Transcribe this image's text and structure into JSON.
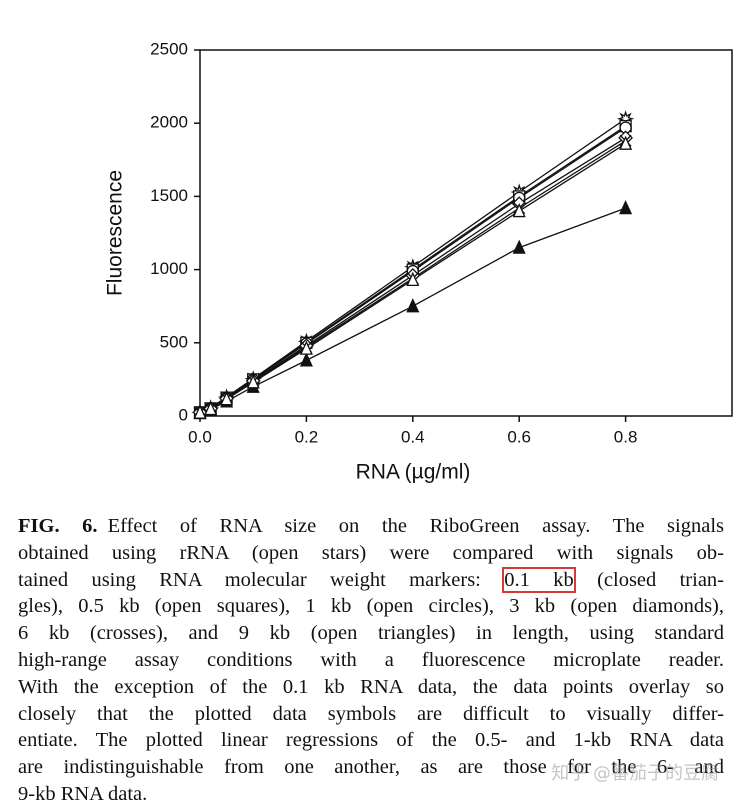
{
  "chart_data": {
    "type": "line",
    "xlabel": "RNA (µg/ml)",
    "ylabel": "Fluorescence",
    "x": [
      0,
      0.02,
      0.05,
      0.1,
      0.2,
      0.4,
      0.6,
      0.8
    ],
    "xlim": [
      0,
      1.0
    ],
    "xticks": [
      {
        "value": 0,
        "label": "0.0"
      },
      0.2,
      0.4,
      0.6,
      0.8
    ],
    "ylim": [
      0,
      2500
    ],
    "yticks": [
      0,
      500,
      1000,
      1500,
      2000,
      2500
    ],
    "series": [
      {
        "marker": "star",
        "color": "#111111",
        "values": [
          25,
          55,
          130,
          255,
          510,
          1020,
          1530,
          2030
        ]
      },
      {
        "marker": "triangle-filled",
        "color": "#111111",
        "values": [
          20,
          45,
          100,
          200,
          380,
          750,
          1150,
          1420
        ]
      },
      {
        "marker": "square",
        "color": "#111111",
        "values": [
          25,
          52,
          125,
          250,
          500,
          1000,
          1500,
          1980
        ]
      },
      {
        "marker": "circle",
        "color": "#111111",
        "values": [
          25,
          52,
          125,
          248,
          495,
          990,
          1490,
          1970
        ]
      },
      {
        "marker": "diamond",
        "color": "#111111",
        "values": [
          25,
          50,
          120,
          240,
          480,
          960,
          1450,
          1900
        ]
      },
      {
        "marker": "cross",
        "color": "#111111",
        "values": [
          24,
          50,
          118,
          235,
          470,
          940,
          1420,
          1880
        ]
      },
      {
        "marker": "triangle",
        "color": "#111111",
        "values": [
          23,
          48,
          115,
          230,
          460,
          930,
          1400,
          1860
        ]
      }
    ]
  },
  "caption": {
    "label": "FIG. 6.",
    "lines": [
      [
        "Effect of RNA size on the RiboGreen assay. The signals"
      ],
      [
        "obtained using rRNA (open stars) were compared with signals ob-"
      ],
      [
        "tained using RNA molecular weight markers: ",
        "0.1 kb",
        " (closed trian-"
      ],
      [
        "gles), 0.5 kb (open squares), 1 kb (open circles), 3 kb (open diamonds),"
      ],
      [
        "6 kb (crosses), and 9 kb (open triangles) in length, using standard"
      ],
      [
        "high-range assay conditions with a fluorescence microplate reader."
      ],
      [
        "With the exception of the 0.1 kb RNA data, the data points overlay so"
      ],
      [
        "closely that the plotted data symbols are difficult to visually differ-"
      ],
      [
        "entiate. The plotted linear regressions of the 0.5- and 1-kb RNA data"
      ],
      [
        "are indistinguishable from one another, as are those for the 6- and"
      ],
      [
        "9-kb RNA data."
      ]
    ]
  },
  "watermark": "知乎 @番茄子的豆腐"
}
